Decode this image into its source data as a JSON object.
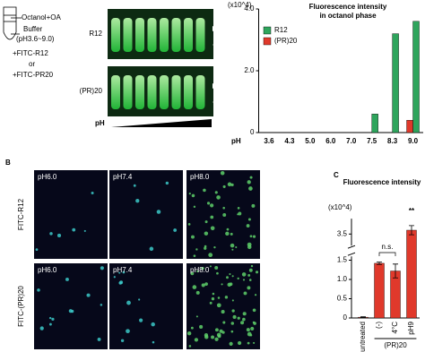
{
  "diagram": {
    "labels": [
      "Octanol+OA",
      "Buffer",
      "(pH3.6~9.0)",
      "+FITC-R12",
      "or",
      "+FITC-PR20"
    ]
  },
  "photo": {
    "rows": [
      "R12",
      "(PR)20"
    ],
    "axis_label": "pH"
  },
  "panel_b": {
    "label": "B",
    "rows": [
      "FITC-R12",
      "FITC-(PR)20"
    ],
    "columns": [
      [
        "pH6.0",
        "pH7.4",
        "pH8.0"
      ],
      [
        "pH6.0",
        "pH7.4",
        "pH8.0"
      ]
    ]
  },
  "chart_data": [
    {
      "type": "bar",
      "title": "Fluorescence intensity",
      "subtitle": "in octanol phase",
      "y_unit": "(x10^4)",
      "x_label": "pH",
      "categories": [
        "3.6",
        "4.3",
        "5.0",
        "6.0",
        "7.0",
        "7.5",
        "8.3",
        "9.0"
      ],
      "series": [
        {
          "name": "R12",
          "color": "#2ea55c",
          "values": [
            0,
            0,
            0,
            0,
            0,
            0.6,
            3.2,
            3.6
          ]
        },
        {
          "name": "(PR)20",
          "color": "#e0392b",
          "values": [
            0,
            0,
            0,
            0,
            0,
            0,
            0,
            0.4
          ]
        }
      ],
      "ylim": [
        0,
        4
      ],
      "yticks": [
        0,
        {
          "value": 2,
          "label": "2.0"
        },
        {
          "value": 4,
          "label": "4.0"
        }
      ],
      "legend": "top-left"
    },
    {
      "type": "bar",
      "panel": "C",
      "title": "Fluorescence intensity",
      "y_unit": "(x10^4)",
      "categories": [
        "untreated",
        "(-)",
        "4°C",
        "pH9"
      ],
      "group_label": "(PR)20",
      "color": "#e0392b",
      "values": [
        0.02,
        1.42,
        1.22,
        3.6
      ],
      "errors": [
        0.01,
        0.03,
        0.18,
        0.12
      ],
      "ylim": [
        0,
        3.9
      ],
      "ybreak": [
        1.6,
        3.2
      ],
      "yticks": [
        0,
        0.5,
        {
          "value": 1,
          "label": "1.0"
        },
        1.5,
        3.5
      ],
      "annotations": [
        "n.s.",
        "**"
      ]
    }
  ]
}
